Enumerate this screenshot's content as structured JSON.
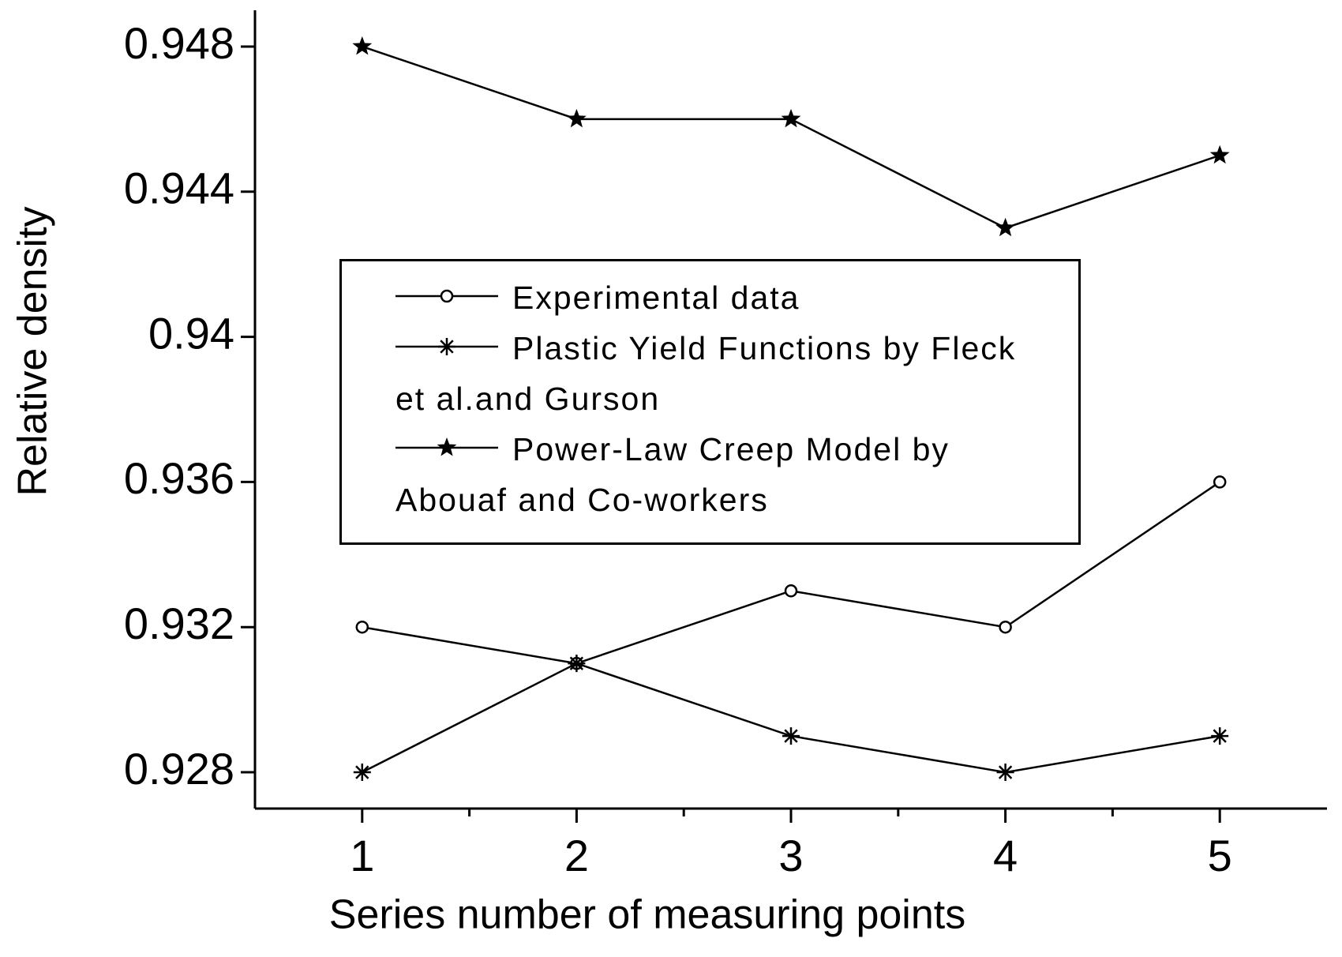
{
  "chart_data": {
    "type": "line",
    "x_label": "Series number of measuring points",
    "y_label": "Relative density",
    "x": [
      1,
      2,
      3,
      4,
      5
    ],
    "xlim": [
      0.5,
      5.5
    ],
    "xticks": [
      1,
      2,
      3,
      4,
      5
    ],
    "xminorticks": [
      1.5,
      2.5,
      3.5,
      4.5
    ],
    "ylim": [
      0.927,
      0.949
    ],
    "yticks": [
      0.928,
      0.932,
      0.936,
      0.94,
      0.944,
      0.948
    ],
    "grid": false,
    "legend": "center",
    "series": [
      {
        "name": "Experimental data",
        "color": "#000000",
        "marker": "circle",
        "values": [
          0.932,
          0.931,
          0.933,
          0.932,
          0.936
        ]
      },
      {
        "name": "Plastic Yield Functions by Fleck et al.and Gurson",
        "color": "#000000",
        "marker": "asterisk",
        "values": [
          0.928,
          0.931,
          0.929,
          0.928,
          0.929
        ]
      },
      {
        "name": "Power-Law Creep Model by Abouaf and Co-workers",
        "color": "#000000",
        "marker": "star",
        "values": [
          0.948,
          0.946,
          0.946,
          0.943,
          0.945
        ]
      }
    ]
  }
}
